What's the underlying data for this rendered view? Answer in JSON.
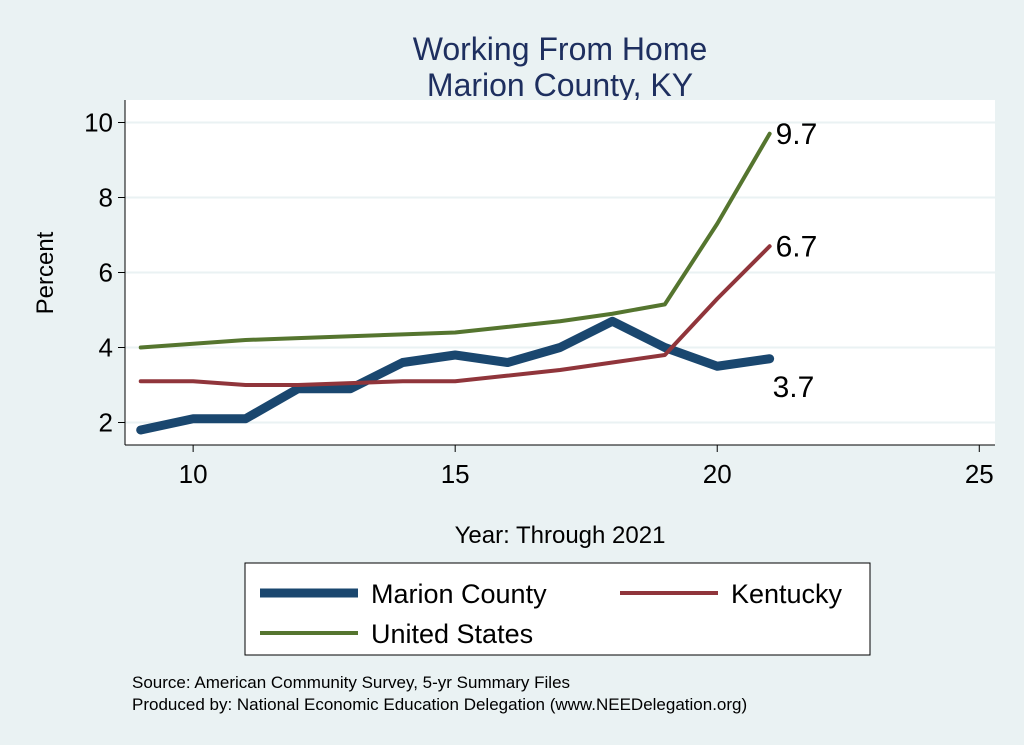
{
  "chart_data": {
    "type": "line",
    "title": "Working From Home",
    "subtitle": "Marion County, KY",
    "xlabel": "Year: Through 2021",
    "ylabel": "Percent",
    "xlim": [
      8.7,
      25.3
    ],
    "ylim": [
      1.4,
      10.6
    ],
    "xticks": [
      10,
      15,
      20,
      25
    ],
    "yticks": [
      2,
      4,
      6,
      8,
      10
    ],
    "grid": true,
    "x": [
      9,
      10,
      11,
      12,
      13,
      14,
      15,
      16,
      17,
      18,
      19,
      20,
      21
    ],
    "series": [
      {
        "name": "Marion County",
        "color": "#1a476f",
        "width": 9,
        "values": [
          1.8,
          2.1,
          2.1,
          2.9,
          2.9,
          3.6,
          3.8,
          3.6,
          4.0,
          4.7,
          4.0,
          3.5,
          3.7
        ],
        "end_label": "3.7",
        "label_pos": "below"
      },
      {
        "name": "Kentucky",
        "color": "#90353b",
        "width": 4,
        "values": [
          3.1,
          3.1,
          3.0,
          3.0,
          3.05,
          3.1,
          3.1,
          3.25,
          3.4,
          3.6,
          3.8,
          5.3,
          6.7
        ],
        "end_label": "6.7",
        "label_pos": "right"
      },
      {
        "name": "United States",
        "color": "#55752f",
        "width": 4,
        "values": [
          4.0,
          4.1,
          4.2,
          4.25,
          4.3,
          4.35,
          4.4,
          4.55,
          4.7,
          4.9,
          5.15,
          7.3,
          9.7
        ],
        "end_label": "9.7",
        "label_pos": "right"
      }
    ],
    "legend": "bottom"
  },
  "notes": [
    "Source: American Community Survey, 5-yr Summary Files",
    "Produced by: National Economic Education Delegation (www.NEEDelegation.org)"
  ]
}
